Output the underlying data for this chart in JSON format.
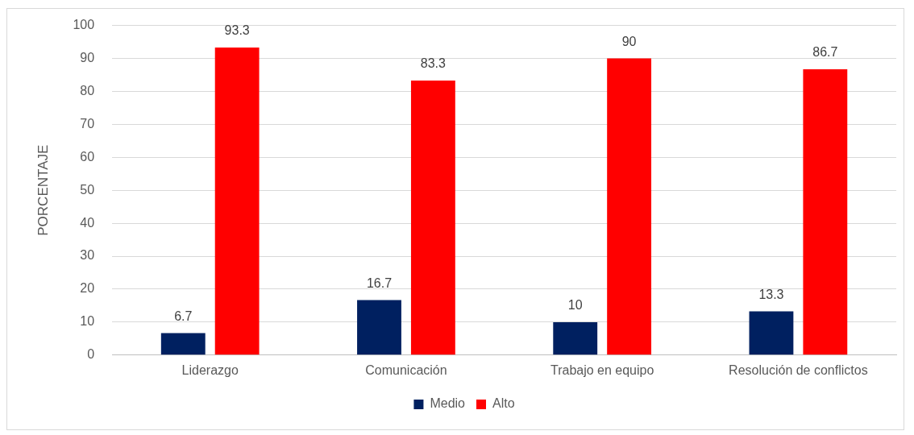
{
  "chart_data": {
    "type": "bar",
    "ylabel": "PORCENTAJE",
    "categories": [
      "Liderazgo",
      "Comunicación",
      "Trabajo en equipo",
      "Resolución de conflictos"
    ],
    "series": [
      {
        "name": "Medio",
        "color": "#002060",
        "values": [
          6.7,
          16.7,
          10,
          13.3
        ]
      },
      {
        "name": "Alto",
        "color": "#ff0000",
        "values": [
          93.3,
          83.3,
          90,
          86.7
        ]
      }
    ],
    "ylim": [
      0,
      100
    ],
    "yticks": [
      0,
      10,
      20,
      30,
      40,
      50,
      60,
      70,
      80,
      90,
      100
    ],
    "grid": "y",
    "legend": "bottom",
    "data_labels": true
  }
}
